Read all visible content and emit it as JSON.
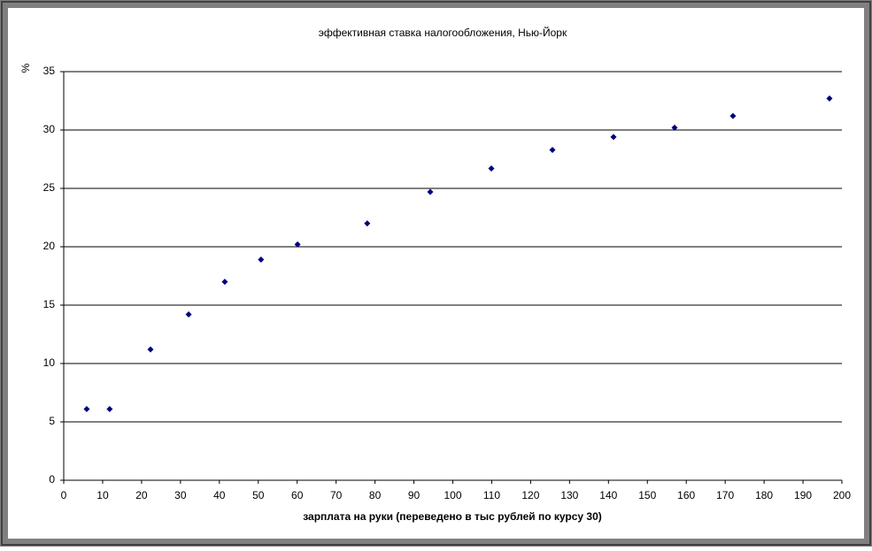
{
  "chart_data": {
    "type": "scatter",
    "title": "эффективная ставка налогообложения, Нью-Йорк",
    "x_label": "зарплата на руки (переведено в тыс рублей по курсу 30)",
    "y_label": "%",
    "series": [
      {
        "name": "эффективная ставка",
        "color": "#000080",
        "x": [
          5.9,
          11.8,
          22.3,
          32.1,
          41.4,
          50.7,
          60.1,
          78.0,
          94.2,
          109.9,
          125.6,
          141.3,
          157.0,
          172.0,
          196.8
        ],
        "values": [
          6.1,
          6.1,
          11.2,
          14.2,
          17.0,
          18.9,
          20.2,
          22.0,
          24.7,
          26.7,
          28.3,
          29.4,
          30.2,
          31.2,
          32.7
        ]
      }
    ],
    "xlim": [
      0,
      200
    ],
    "xticks": [
      0,
      10,
      20,
      30,
      40,
      50,
      60,
      70,
      80,
      90,
      100,
      110,
      120,
      130,
      140,
      150,
      160,
      170,
      180,
      190,
      200
    ],
    "ylim": [
      0,
      35
    ],
    "yticks": [
      0,
      5,
      10,
      15,
      20,
      25,
      30,
      35
    ],
    "grid": true
  }
}
